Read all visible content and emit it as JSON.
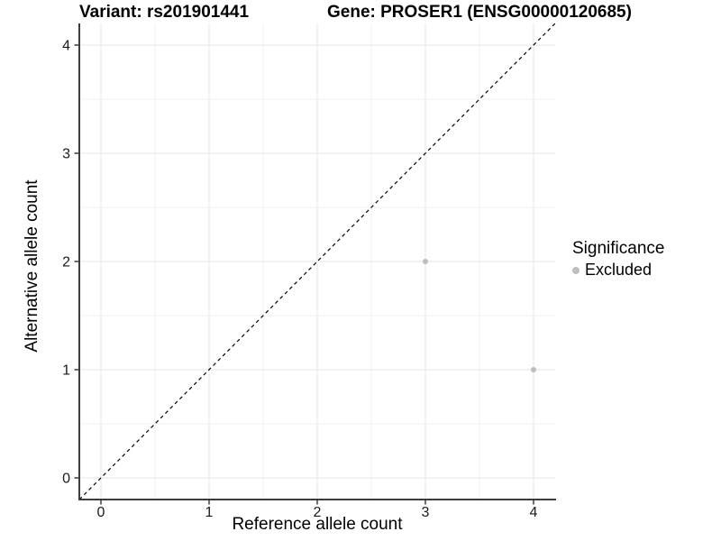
{
  "header": {
    "variant_title": "Variant: rs201901441",
    "gene_title": "Gene: PROSER1 (ENSG00000120685)"
  },
  "chart_data": {
    "type": "scatter",
    "title": "Variant: rs201901441    Gene: PROSER1 (ENSG00000120685)",
    "xlabel": "Reference allele count",
    "ylabel": "Alternative allele count",
    "xlim": [
      -0.2,
      4.2
    ],
    "ylim": [
      -0.2,
      4.2
    ],
    "x_ticks": [
      0,
      1,
      2,
      3,
      4
    ],
    "y_ticks": [
      0,
      1,
      2,
      3,
      4
    ],
    "x_tick_labels": [
      "0",
      "1",
      "2",
      "3",
      "4"
    ],
    "y_tick_labels": [
      "0",
      "1",
      "2",
      "3",
      "4"
    ],
    "x_minor_ticks": [
      0.5,
      1.5,
      2.5,
      3.5
    ],
    "y_minor_ticks": [
      0.5,
      1.5,
      2.5,
      3.5
    ],
    "grid": true,
    "series": [
      {
        "name": "Excluded",
        "color": "#bebebe",
        "points": [
          [
            3,
            2
          ],
          [
            4,
            1
          ]
        ]
      }
    ],
    "reference_line": {
      "type": "identity y=x",
      "style": "dashed",
      "color": "#000000",
      "from": -0.2,
      "to": 4.2
    },
    "legend": {
      "title": "Significance",
      "position": "right",
      "items": [
        {
          "label": "Excluded",
          "color": "#bebebe"
        }
      ]
    },
    "colors": {
      "background": "#ffffff",
      "grid_major": "#e5e5e5",
      "grid_minor": "#f0f0f0",
      "axis_line": "#3c3c3c",
      "tick_label": "#1a1a1a",
      "point": "#bebebe"
    }
  }
}
